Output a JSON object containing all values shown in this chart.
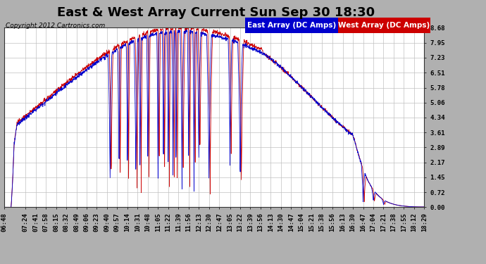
{
  "title": "East & West Array Current Sun Sep 30 18:30",
  "copyright": "Copyright 2012 Cartronics.com",
  "east_label": "East Array (DC Amps)",
  "west_label": "West Array (DC Amps)",
  "east_color": "#0000cc",
  "west_color": "#cc0000",
  "east_bg": "#0000cc",
  "west_bg": "#cc0000",
  "background_color": "#b0b0b0",
  "plot_bg": "#ffffff",
  "ylim": [
    0.0,
    8.68
  ],
  "yticks": [
    0.0,
    0.72,
    1.45,
    2.17,
    2.89,
    3.61,
    4.34,
    5.06,
    5.78,
    6.51,
    7.23,
    7.95,
    8.68
  ],
  "title_fontsize": 13,
  "legend_fontsize": 7.5,
  "tick_label_fontsize": 6.5,
  "grid_color": "#c0c0c0",
  "x_tick_labels": [
    "06:48",
    "07:24",
    "07:41",
    "07:58",
    "08:15",
    "08:32",
    "08:49",
    "09:06",
    "09:23",
    "09:40",
    "09:57",
    "10:14",
    "10:31",
    "10:48",
    "11:05",
    "11:22",
    "11:39",
    "11:56",
    "12:13",
    "12:30",
    "12:47",
    "13:05",
    "13:22",
    "13:39",
    "13:56",
    "14:13",
    "14:30",
    "14:47",
    "15:04",
    "15:21",
    "15:38",
    "15:56",
    "16:13",
    "16:30",
    "16:47",
    "17:04",
    "17:21",
    "17:38",
    "17:55",
    "18:12",
    "18:29"
  ]
}
